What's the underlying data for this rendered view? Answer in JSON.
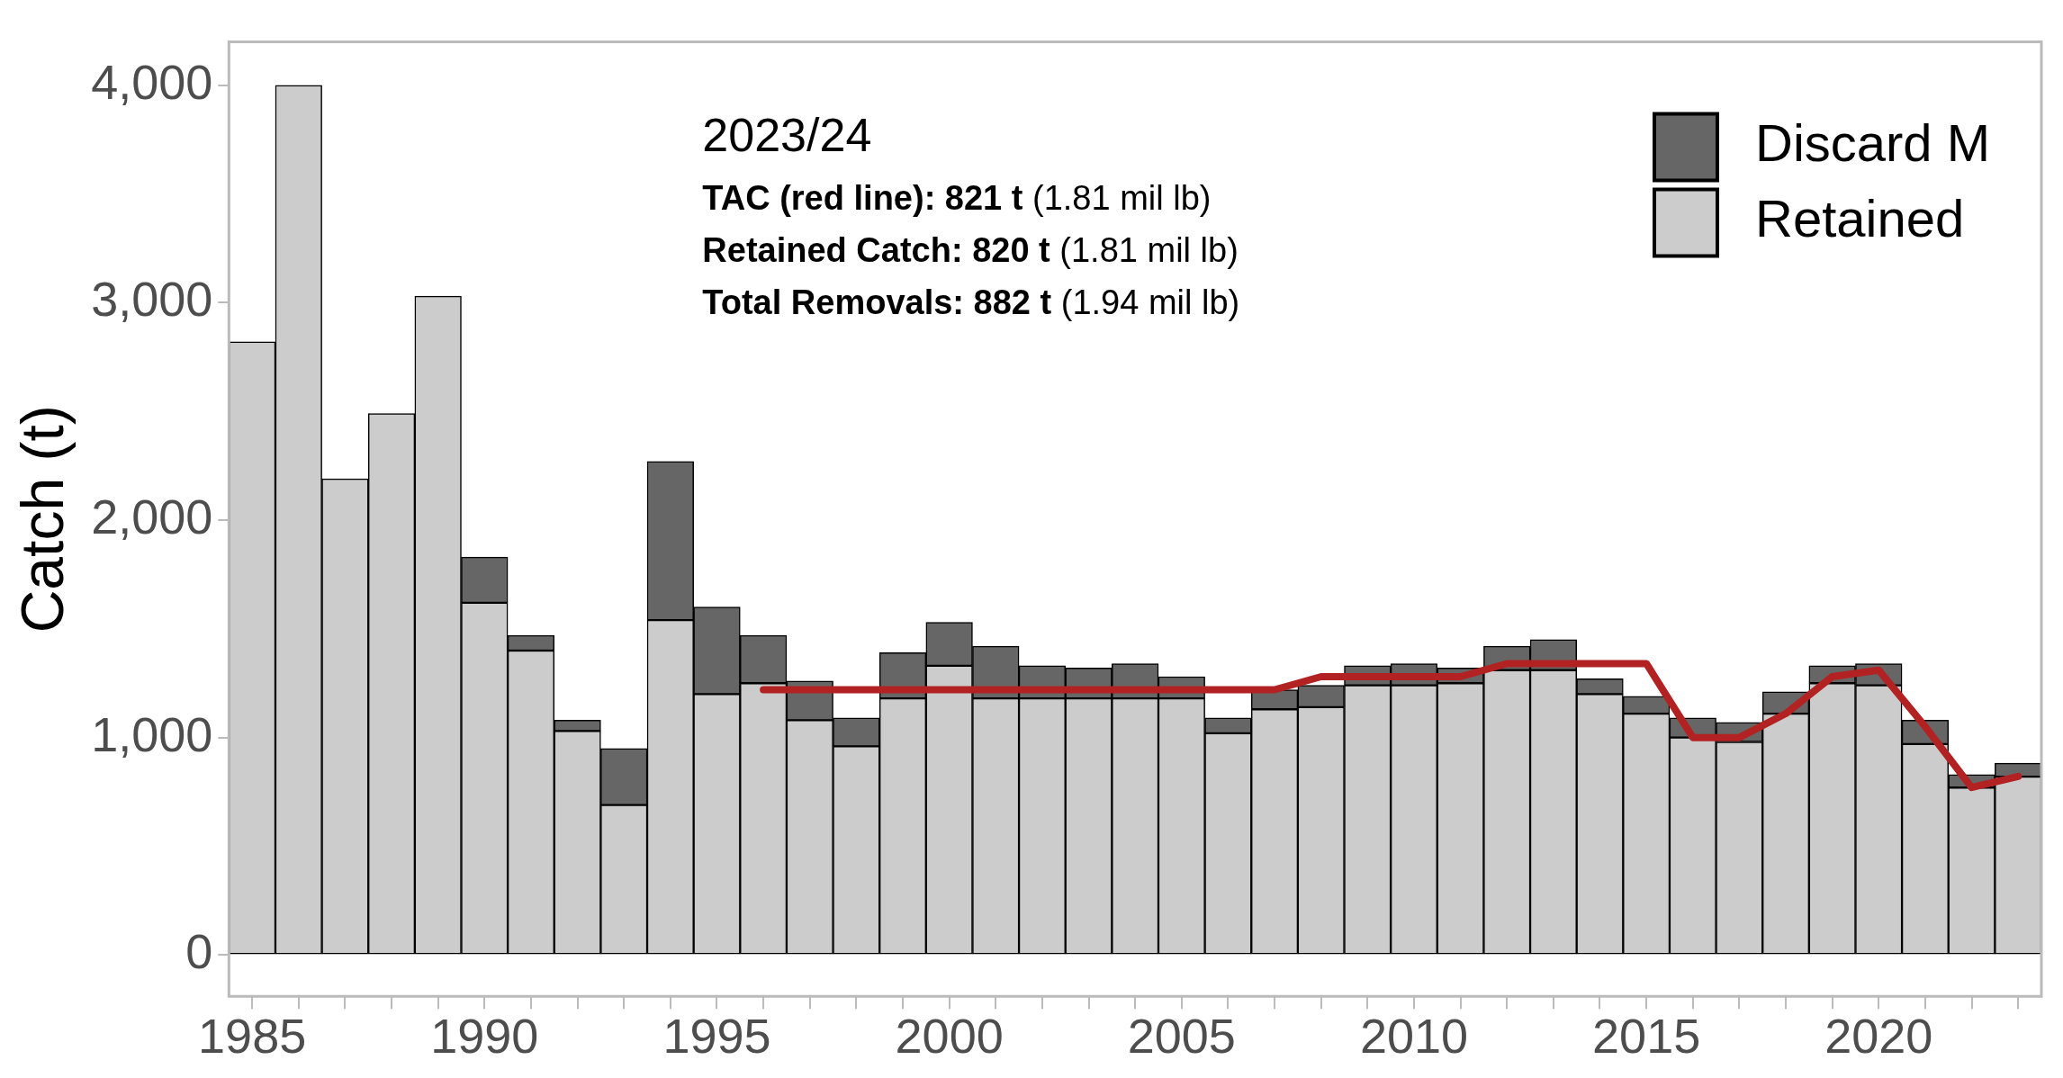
{
  "chart_data": {
    "type": "bar",
    "ylabel": "Catch (t)",
    "stacked": true,
    "legend": "top right",
    "categories": [
      "1985",
      null,
      null,
      null,
      null,
      "1990",
      null,
      null,
      null,
      null,
      "1995",
      null,
      null,
      null,
      null,
      "2000",
      null,
      null,
      null,
      null,
      "2005",
      null,
      null,
      null,
      null,
      "2010",
      null,
      null,
      null,
      null,
      "2015",
      null,
      null,
      null,
      null,
      "2020",
      null,
      null,
      null
    ],
    "series": [
      {
        "name": "Retained",
        "color": "#cccccc",
        "values": [
          2820,
          4000,
          2190,
          2490,
          3030,
          1620,
          1400,
          1030,
          690,
          1540,
          1200,
          1250,
          1080,
          960,
          1180,
          1330,
          1180,
          1180,
          1180,
          1180,
          1180,
          1020,
          1130,
          1140,
          1240,
          1240,
          1250,
          1310,
          1310,
          1200,
          1110,
          1000,
          980,
          1110,
          1250,
          1240,
          970,
          770,
          820
        ]
      },
      {
        "name": "Discard M",
        "color": "#666666",
        "values": [
          null,
          null,
          null,
          null,
          null,
          210,
          70,
          50,
          260,
          730,
          400,
          220,
          180,
          130,
          210,
          200,
          240,
          150,
          140,
          160,
          100,
          70,
          90,
          100,
          90,
          100,
          70,
          110,
          140,
          70,
          80,
          90,
          90,
          100,
          80,
          100,
          110,
          60,
          62
        ]
      },
      {
        "type": "line",
        "color": "#b22222",
        "line_style": "solid",
        "marker": "none",
        "values": [
          null,
          null,
          null,
          null,
          null,
          null,
          null,
          null,
          null,
          null,
          null,
          1220,
          1220,
          1220,
          1220,
          1220,
          1220,
          1220,
          1220,
          1220,
          1220,
          1220,
          1220,
          1280,
          1280,
          1280,
          1280,
          1340,
          1340,
          1340,
          1340,
          1000,
          1000,
          1110,
          1280,
          1310,
          1050,
          770,
          821
        ]
      }
    ],
    "ylim": [
      -190,
      4200
    ],
    "yticks": [
      {
        "value": 0,
        "label": "0"
      },
      {
        "value": 1000,
        "label": "1,000"
      },
      {
        "value": 2000,
        "label": "2,000"
      },
      {
        "value": 3000,
        "label": "3,000"
      },
      {
        "value": 4000,
        "label": "4,000"
      }
    ],
    "grid": false,
    "annotations": [
      "2023/24",
      "TAC (red line): 821 t (1.81 mil lb)",
      "Retained Catch: 820 t (1.81 mil lb)",
      "Total Removals: 882 t (1.94 mil lb)"
    ]
  }
}
